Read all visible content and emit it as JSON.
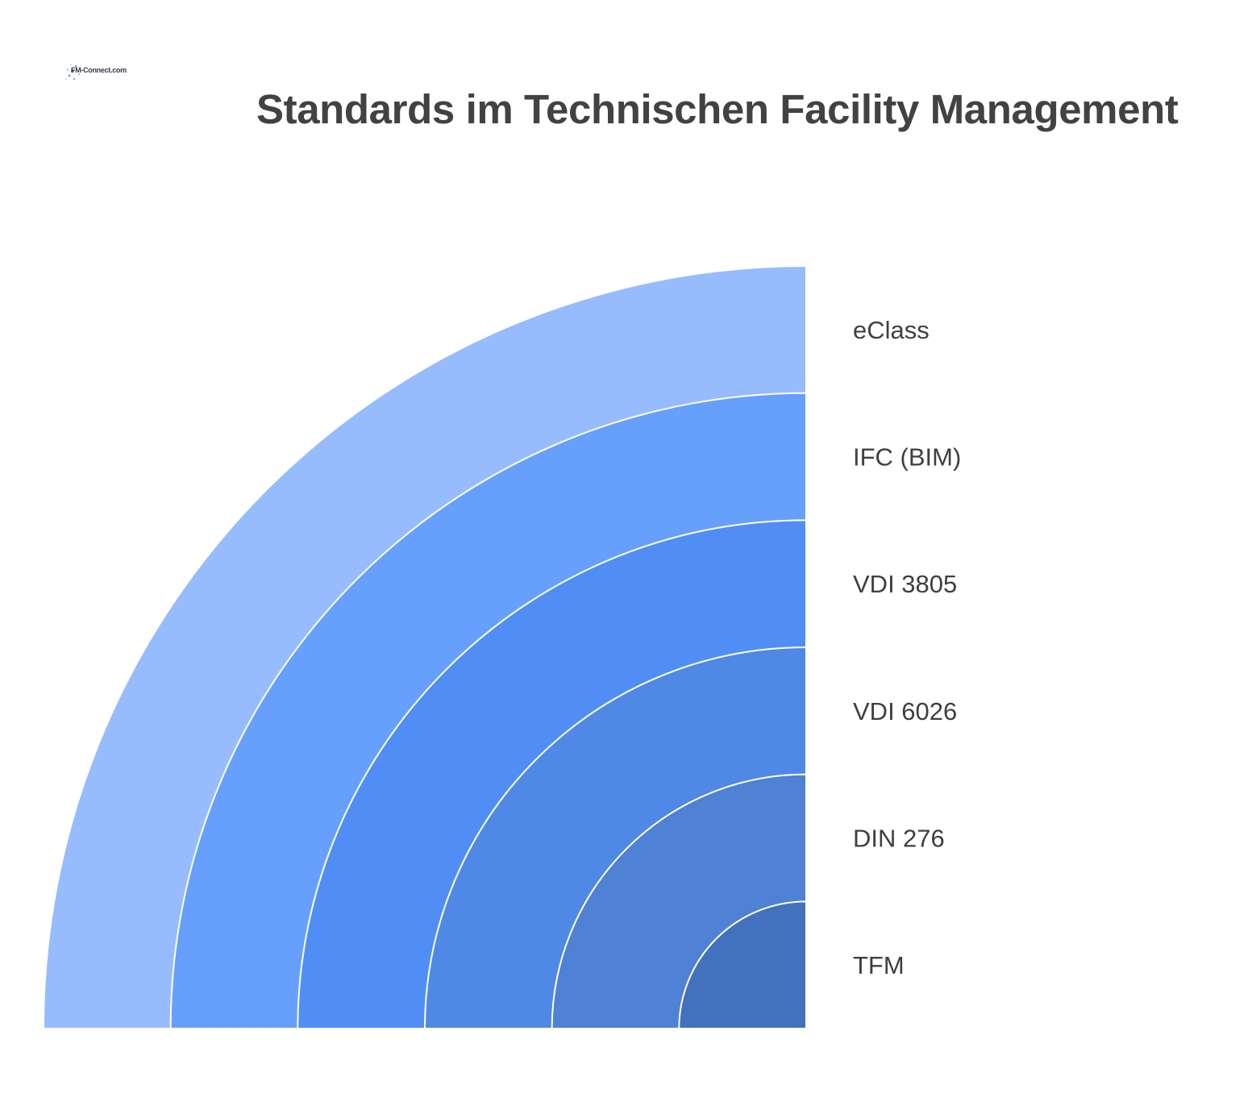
{
  "logo": {
    "text": "FM-Connect.com"
  },
  "title": "Standards im Technischen Facility Management",
  "layers": [
    {
      "label": "eClass",
      "color": "#97bcfd"
    },
    {
      "label": "IFC (BIM)",
      "color": "#66a0fc"
    },
    {
      "label": "VDI 3805",
      "color": "#508ef5"
    },
    {
      "label": "VDI 6026",
      "color": "#4f89e5"
    },
    {
      "label": "DIN 276",
      "color": "#4f81d4"
    },
    {
      "label": "TFM",
      "color": "#4371bd"
    }
  ]
}
